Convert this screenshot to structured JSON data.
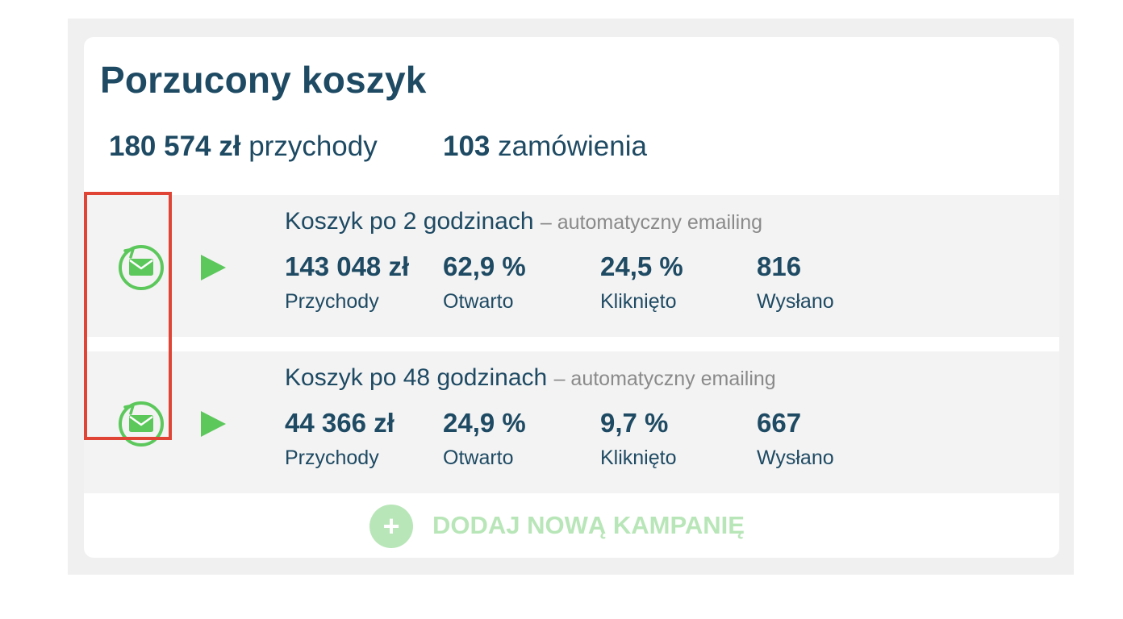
{
  "widget": {
    "title": "Porzucony koszyk",
    "summary": {
      "revenue_value": "180 574 zł",
      "revenue_label": "przychody",
      "orders_value": "103",
      "orders_label": "zamówienia"
    }
  },
  "campaigns": [
    {
      "name": "Koszyk po 2 godzinach",
      "subtitle": "– automatyczny emailing",
      "metrics": [
        {
          "value": "143 048 zł",
          "label": "Przychody"
        },
        {
          "value": "62,9 %",
          "label": "Otwarto"
        },
        {
          "value": "24,5 %",
          "label": "Kliknięto"
        },
        {
          "value": "816",
          "label": "Wysłano"
        }
      ]
    },
    {
      "name": "Koszyk po 48 godzinach",
      "subtitle": "– automatyczny emailing",
      "metrics": [
        {
          "value": "44 366 zł",
          "label": "Przychody"
        },
        {
          "value": "24,9 %",
          "label": "Otwarto"
        },
        {
          "value": "9,7 %",
          "label": "Kliknięto"
        },
        {
          "value": "667",
          "label": "Wysłano"
        }
      ]
    }
  ],
  "add_campaign": {
    "icon": "plus-icon",
    "label": "DODAJ NOWĄ KAMPANIĘ"
  },
  "icons": {
    "campaign_icon": "email-timer-icon",
    "action_icon": "play-icon"
  },
  "colors": {
    "title": "#1e4a63",
    "accent_green": "#5cc85c",
    "add_green_light": "#b8e6b8",
    "highlight_red": "#e04434",
    "muted_text": "#8a8a8a",
    "row_background": "#f3f3f3"
  }
}
